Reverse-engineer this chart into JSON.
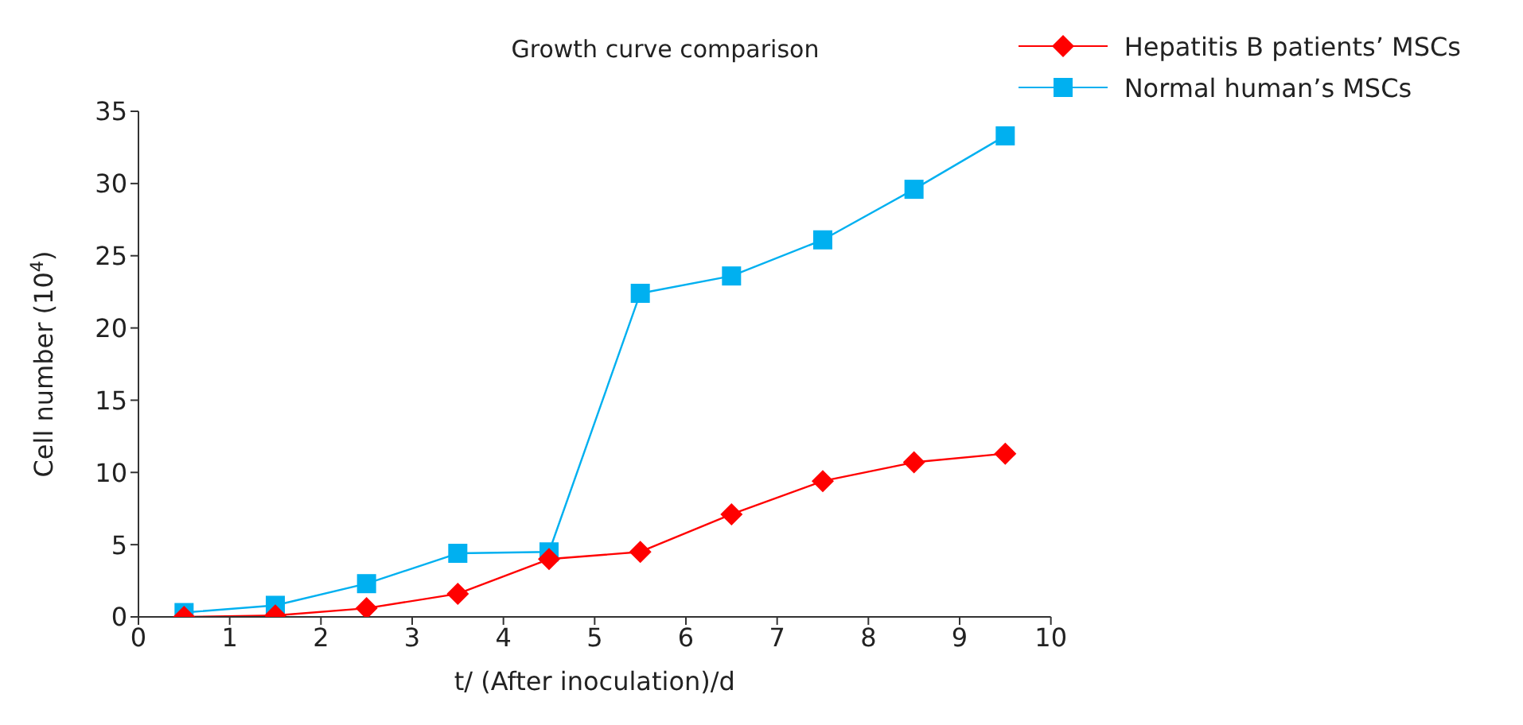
{
  "chart_data": {
    "type": "line",
    "title": "Growth curve comparison",
    "xlabel": "t/ (After inoculation)/d",
    "ylabel": "Cell number (10$^{4}$)",
    "x": [
      0.5,
      1.5,
      2.5,
      3.5,
      4.5,
      5.5,
      6.5,
      7.5,
      8.5,
      9.5
    ],
    "series": [
      {
        "name": "Hepatitis B patients’ MSCs",
        "color": "#ff0000",
        "marker": "diamond",
        "values": [
          0,
          0.1,
          0.6,
          1.6,
          4.0,
          4.5,
          7.1,
          9.4,
          10.7,
          11.3
        ]
      },
      {
        "name": "Normal human’s MSCs",
        "color": "#00b0f0",
        "marker": "square",
        "values": [
          0.3,
          0.8,
          2.3,
          4.4,
          4.5,
          22.4,
          23.6,
          26.1,
          29.6,
          33.3
        ]
      }
    ],
    "xlim": [
      0,
      10
    ],
    "xticks": [
      0,
      1,
      2,
      3,
      4,
      5,
      6,
      7,
      8,
      9,
      10
    ],
    "ylim": [
      0,
      35
    ],
    "yticks": [
      0,
      5,
      10,
      15,
      20,
      25,
      30,
      35
    ],
    "grid": false,
    "legend": "top right",
    "line_style": "solid"
  }
}
